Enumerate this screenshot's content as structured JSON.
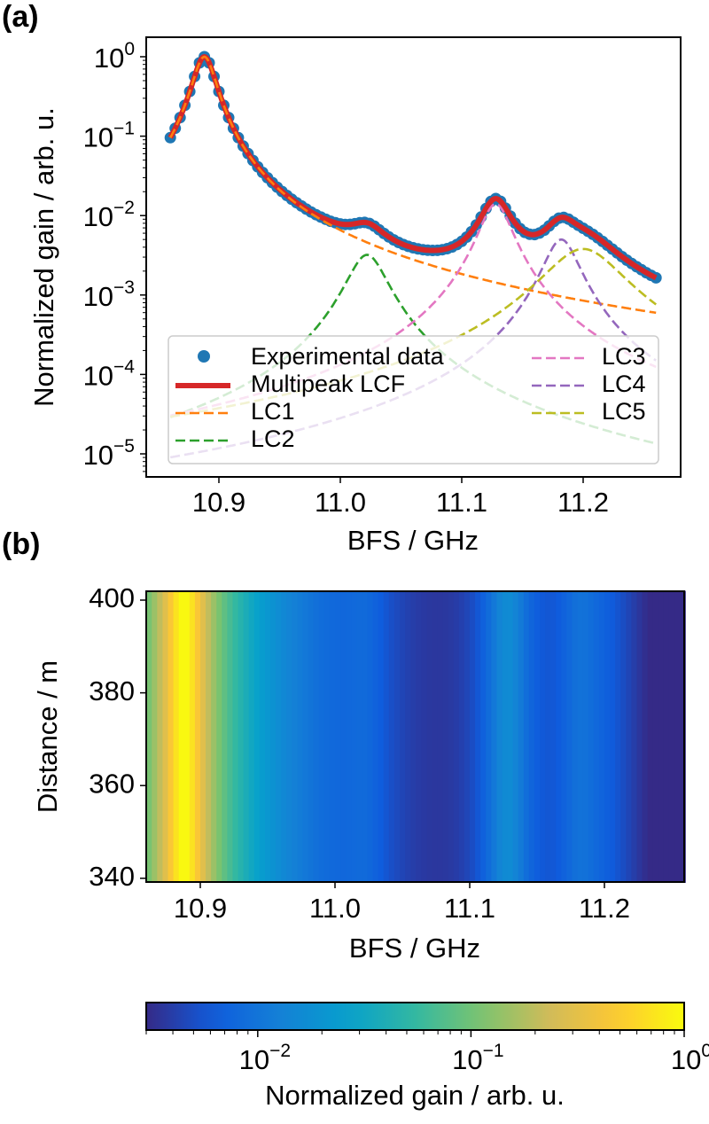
{
  "panel_labels": {
    "a": "(a)",
    "b": "(b)"
  },
  "chart_data": [
    {
      "type": "line",
      "panel": "(a)",
      "xlabel": "BFS / GHz",
      "ylabel": "Normalized gain / arb. u.",
      "yscale": "log",
      "xlim": [
        10.84,
        11.28
      ],
      "ylim_log10": [
        -5.29,
        0.245
      ],
      "x_ticks": [
        "10.9",
        "11.0",
        "11.1",
        "11.2"
      ],
      "x_tick_values": [
        10.9,
        11.0,
        11.1,
        11.2
      ],
      "y_ticks": [
        {
          "base": "10",
          "exp": "0",
          "value": 1
        },
        {
          "base": "10",
          "exp": "−1",
          "value": 0.1
        },
        {
          "base": "10",
          "exp": "−2",
          "value": 0.01
        },
        {
          "base": "10",
          "exp": "−3",
          "value": 0.001
        },
        {
          "base": "10",
          "exp": "−4",
          "value": 0.0001
        },
        {
          "base": "10",
          "exp": "−5",
          "value": 1e-05
        }
      ],
      "components": [
        {
          "name": "LC1",
          "color": "#ff7f0e",
          "center": 10.888,
          "amplitude": 1.0,
          "hwhm": 0.0091
        },
        {
          "name": "LC2",
          "color": "#2ca02c",
          "center": 11.022,
          "amplitude": 0.0032,
          "hwhm": 0.0155
        },
        {
          "name": "LC3",
          "color": "#e377c2",
          "center": 11.128,
          "amplitude": 0.014,
          "hwhm": 0.0125
        },
        {
          "name": "LC4",
          "color": "#9467bd",
          "center": 11.182,
          "amplitude": 0.005,
          "hwhm": 0.0137
        },
        {
          "name": "LC5",
          "color": "#bcbd22",
          "center": 11.2,
          "amplitude": 0.0038,
          "hwhm": 0.03
        }
      ],
      "experimental_data": {
        "name": "Experimental data",
        "color": "#1f77b4",
        "x_start": 10.86,
        "x_end": 11.26,
        "n_points": 101,
        "note": "sum of LC1–LC5"
      },
      "fit": {
        "name": "Multipeak LCF",
        "color": "#d62728"
      },
      "legend": {
        "placement": "lower-center",
        "entries": [
          "Experimental data",
          "Multipeak LCF",
          "LC1",
          "LC2",
          "LC3",
          "LC4",
          "LC5"
        ]
      }
    },
    {
      "type": "heatmap",
      "panel": "(b)",
      "xlabel": "BFS / GHz",
      "ylabel": "Distance / m",
      "xlim": [
        10.86,
        11.26
      ],
      "ylim": [
        339,
        402
      ],
      "x_ticks": [
        "10.9",
        "11.0",
        "11.1",
        "11.2"
      ],
      "x_tick_values": [
        10.9,
        11.0,
        11.1,
        11.2
      ],
      "y_ticks": [
        "400",
        "380",
        "360",
        "340"
      ],
      "y_tick_values": [
        400,
        380,
        360,
        340
      ],
      "n_columns": 100,
      "z_profile": "same normalized gain spectrum as (a), uniform over distance",
      "colormap": "parula",
      "colorbar": {
        "label": "Normalized gain / arb. u.",
        "scale": "log",
        "range": [
          0.003,
          1
        ],
        "ticks": [
          {
            "base": "10",
            "exp": "−2",
            "value": 0.01
          },
          {
            "base": "10",
            "exp": "−1",
            "value": 0.1
          },
          {
            "base": "10",
            "exp": "0",
            "value": 1
          }
        ]
      }
    }
  ]
}
